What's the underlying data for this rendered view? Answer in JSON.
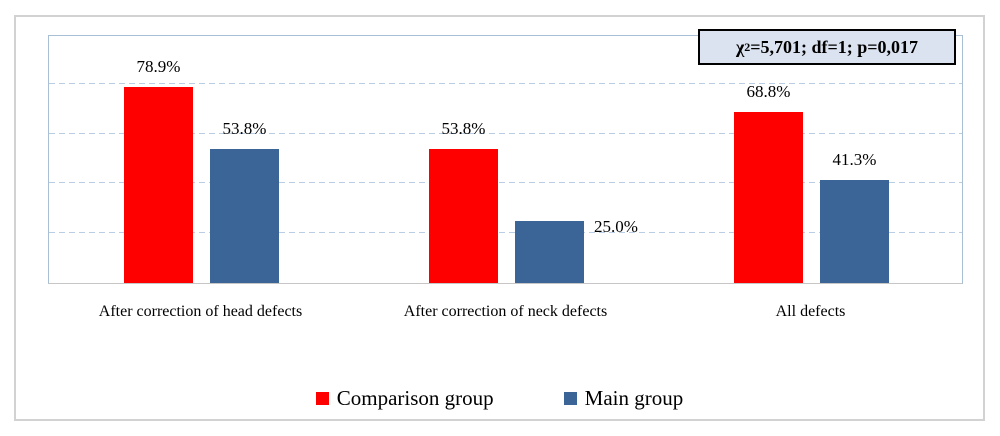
{
  "figure": {
    "background": "#FFFFFF",
    "outer_border_color": "#D2D2D2",
    "plot_border_color": "#A9BFD6",
    "axis_line_color": "#C6C6C6",
    "gridline_color": "#B9CDE5"
  },
  "stat_box": {
    "chi_symbol": "χ",
    "chi_exponent": "2",
    "text_rest": "=5,701; df=1; p=0,017",
    "background": "#DCE3F0",
    "border_color": "#000000"
  },
  "chart_data": {
    "type": "bar",
    "title": "",
    "xlabel": "",
    "ylabel": "",
    "categories": [
      "After correction of head defects",
      "After correction of neck defects",
      "All defects"
    ],
    "series": [
      {
        "name": "Comparison group",
        "color": "#FF0000",
        "values": [
          78.9,
          53.8,
          68.8
        ]
      },
      {
        "name": "Main group",
        "color": "#3A6596",
        "values": [
          53.8,
          25.0,
          41.3
        ]
      }
    ],
    "value_labels": [
      [
        "78.9%",
        "53.8%"
      ],
      [
        "53.8%",
        "25.0%"
      ],
      [
        "68.8%",
        "41.3%"
      ]
    ],
    "label_placement": [
      [
        "above",
        "above"
      ],
      [
        "above",
        "right"
      ],
      [
        "above",
        "above"
      ]
    ],
    "ylim": [
      0,
      100
    ],
    "gridline_step": 20,
    "grid": true,
    "legend_position": "bottom",
    "annotation": "χ2=5,701; df=1; p=0,017"
  },
  "legend": {
    "items": [
      {
        "label": "Comparison group",
        "color": "#FF0000"
      },
      {
        "label": "Main group",
        "color": "#3A6596"
      }
    ]
  }
}
